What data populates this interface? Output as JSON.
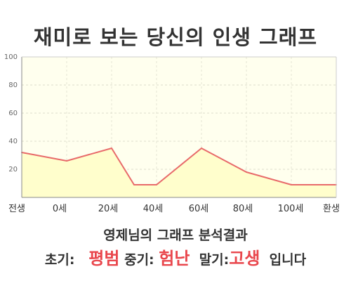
{
  "title": "재미로 보는 당신의 인생 그래프",
  "chart_data": {
    "type": "area",
    "title": "재미로 보는 당신의 인생 그래프",
    "y_ticks": [
      20,
      40,
      60,
      80,
      100
    ],
    "ylim": [
      0,
      100
    ],
    "x_tick_labels": [
      "전생",
      "0세",
      "20세",
      "40세",
      "60세",
      "80세",
      "100세",
      "환생"
    ],
    "x": [
      -20,
      0,
      20,
      30,
      40,
      60,
      80,
      100,
      120
    ],
    "values": [
      32,
      26,
      35,
      9,
      9,
      35,
      18,
      9,
      9
    ],
    "grid": true,
    "colors": {
      "line": "#e86a6a",
      "fill": "#fffecc",
      "plot_bg": "#ffffee"
    }
  },
  "summary": {
    "heading": "영제님의 그래프 분석결과",
    "early_label": "초기:",
    "early_value": "평범",
    "mid_label": "중기:",
    "mid_value": "험난",
    "late_label": "말기:",
    "late_value": "고생",
    "ending": "입니다"
  },
  "colors": {
    "accent": "#e9464c",
    "text": "#333333"
  }
}
